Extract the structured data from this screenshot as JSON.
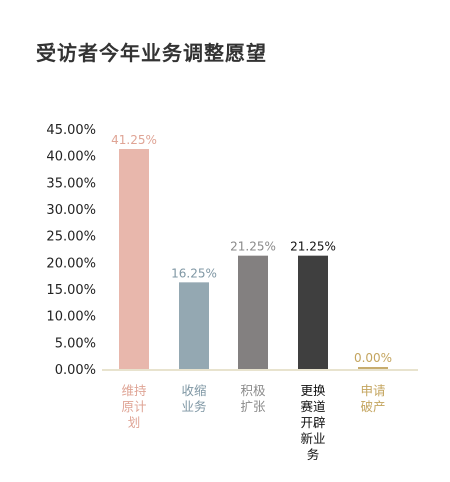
{
  "chart_data": {
    "type": "bar",
    "title": "受访者今年业务调整愿望",
    "xlabel": "",
    "ylabel": "",
    "ylim": [
      0,
      45
    ],
    "y_ticks": [
      "0.00%",
      "5.00%",
      "10.00%",
      "15.00%",
      "20.00%",
      "25.00%",
      "30.00%",
      "35.00%",
      "40.00%",
      "45.00%"
    ],
    "grid": false,
    "categories": [
      "维持原计划",
      "收缩业务",
      "积极扩张",
      "更换赛道开辟新业务",
      "申请破产"
    ],
    "category_lines": [
      [
        "维持",
        "原计",
        "划"
      ],
      [
        "收缩",
        "业务"
      ],
      [
        "积极",
        "扩张"
      ],
      [
        "更换",
        "赛道",
        "开辟",
        "新业",
        "务"
      ],
      [
        "申请",
        "破产"
      ]
    ],
    "values": [
      41.25,
      16.25,
      21.25,
      21.25,
      0.0
    ],
    "value_labels": [
      "41.25%",
      "16.25%",
      "21.25%",
      "21.25%",
      "0.00%"
    ],
    "colors": [
      "#e8b7ac",
      "#94a8b2",
      "#838080",
      "#3f3f3f",
      "#c7ac6e"
    ],
    "label_colors": [
      "#dfa495",
      "#7f97a4",
      "#8a8a8a",
      "#111111",
      "#c4a55f"
    ],
    "axis_color": "#d9d2b0"
  }
}
